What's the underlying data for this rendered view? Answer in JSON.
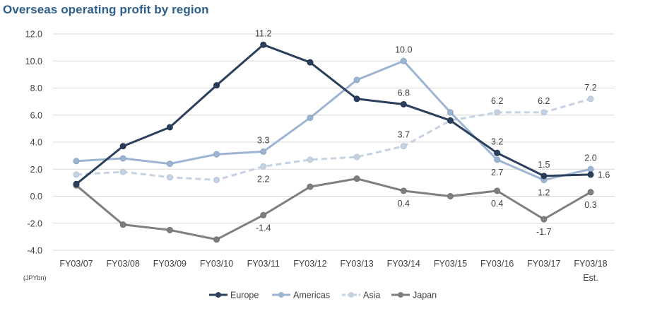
{
  "chart_data": {
    "type": "line",
    "title": "Overseas operating profit by region",
    "unit_label": "(JPYbn)",
    "categories": [
      "FY03/07",
      "FY03/08",
      "FY03/09",
      "FY03/10",
      "FY03/11",
      "FY03/12",
      "FY03/13",
      "FY03/14",
      "FY03/15",
      "FY03/16",
      "FY03/17",
      "FY03/18"
    ],
    "category_sublabels": [
      "",
      "",
      "",
      "",
      "",
      "",
      "",
      "",
      "",
      "",
      "",
      "Est."
    ],
    "ylim": [
      -4.0,
      12.0
    ],
    "yticks": [
      "12.0",
      "10.0",
      "8.0",
      "6.0",
      "4.0",
      "2.0",
      "0.0",
      "-2.0",
      "-4.0"
    ],
    "grid": true,
    "legend_position": "bottom-center",
    "series": [
      {
        "name": "Europe",
        "color": "#2b3f5c",
        "style": "solid",
        "marker": true,
        "values": [
          0.9,
          3.7,
          5.1,
          8.2,
          11.2,
          9.9,
          7.2,
          6.8,
          5.6,
          3.2,
          1.5,
          1.6
        ],
        "labels": [
          {
            "index": 4,
            "text": "11.2",
            "pos": "above"
          },
          {
            "index": 7,
            "text": "6.8",
            "pos": "above"
          },
          {
            "index": 9,
            "text": "3.2",
            "pos": "above"
          },
          {
            "index": 10,
            "text": "1.5",
            "pos": "above"
          },
          {
            "index": 11,
            "text": "1.6",
            "pos": "right"
          }
        ]
      },
      {
        "name": "Americas",
        "color": "#9db5d3",
        "style": "solid",
        "marker": true,
        "values": [
          2.6,
          2.8,
          2.4,
          3.1,
          3.3,
          5.8,
          8.6,
          10.0,
          6.2,
          2.7,
          1.2,
          2.0
        ],
        "labels": [
          {
            "index": 4,
            "text": "3.3",
            "pos": "above"
          },
          {
            "index": 7,
            "text": "10.0",
            "pos": "above"
          },
          {
            "index": 9,
            "text": "2.7",
            "pos": "below"
          },
          {
            "index": 10,
            "text": "1.2",
            "pos": "below"
          },
          {
            "index": 11,
            "text": "2.0",
            "pos": "above"
          }
        ]
      },
      {
        "name": "Asia",
        "color": "#c5d2e1",
        "style": "dashed",
        "marker": true,
        "values": [
          1.6,
          1.8,
          1.4,
          1.2,
          2.2,
          2.7,
          2.9,
          3.7,
          5.6,
          6.2,
          6.2,
          7.2
        ],
        "labels": [
          {
            "index": 4,
            "text": "2.2",
            "pos": "below"
          },
          {
            "index": 7,
            "text": "3.7",
            "pos": "above"
          },
          {
            "index": 9,
            "text": "6.2",
            "pos": "above"
          },
          {
            "index": 10,
            "text": "6.2",
            "pos": "above"
          },
          {
            "index": 11,
            "text": "7.2",
            "pos": "above"
          }
        ]
      },
      {
        "name": "Japan",
        "color": "#7f7f7f",
        "style": "solid",
        "marker": true,
        "values": [
          0.8,
          -2.1,
          -2.5,
          -3.2,
          -1.4,
          0.7,
          1.3,
          0.4,
          0.0,
          0.4,
          -1.7,
          0.3
        ],
        "labels": [
          {
            "index": 4,
            "text": "-1.4",
            "pos": "below"
          },
          {
            "index": 7,
            "text": "0.4",
            "pos": "below"
          },
          {
            "index": 9,
            "text": "0.4",
            "pos": "below"
          },
          {
            "index": 10,
            "text": "-1.7",
            "pos": "below"
          },
          {
            "index": 11,
            "text": "0.3",
            "pos": "below"
          }
        ]
      }
    ]
  }
}
